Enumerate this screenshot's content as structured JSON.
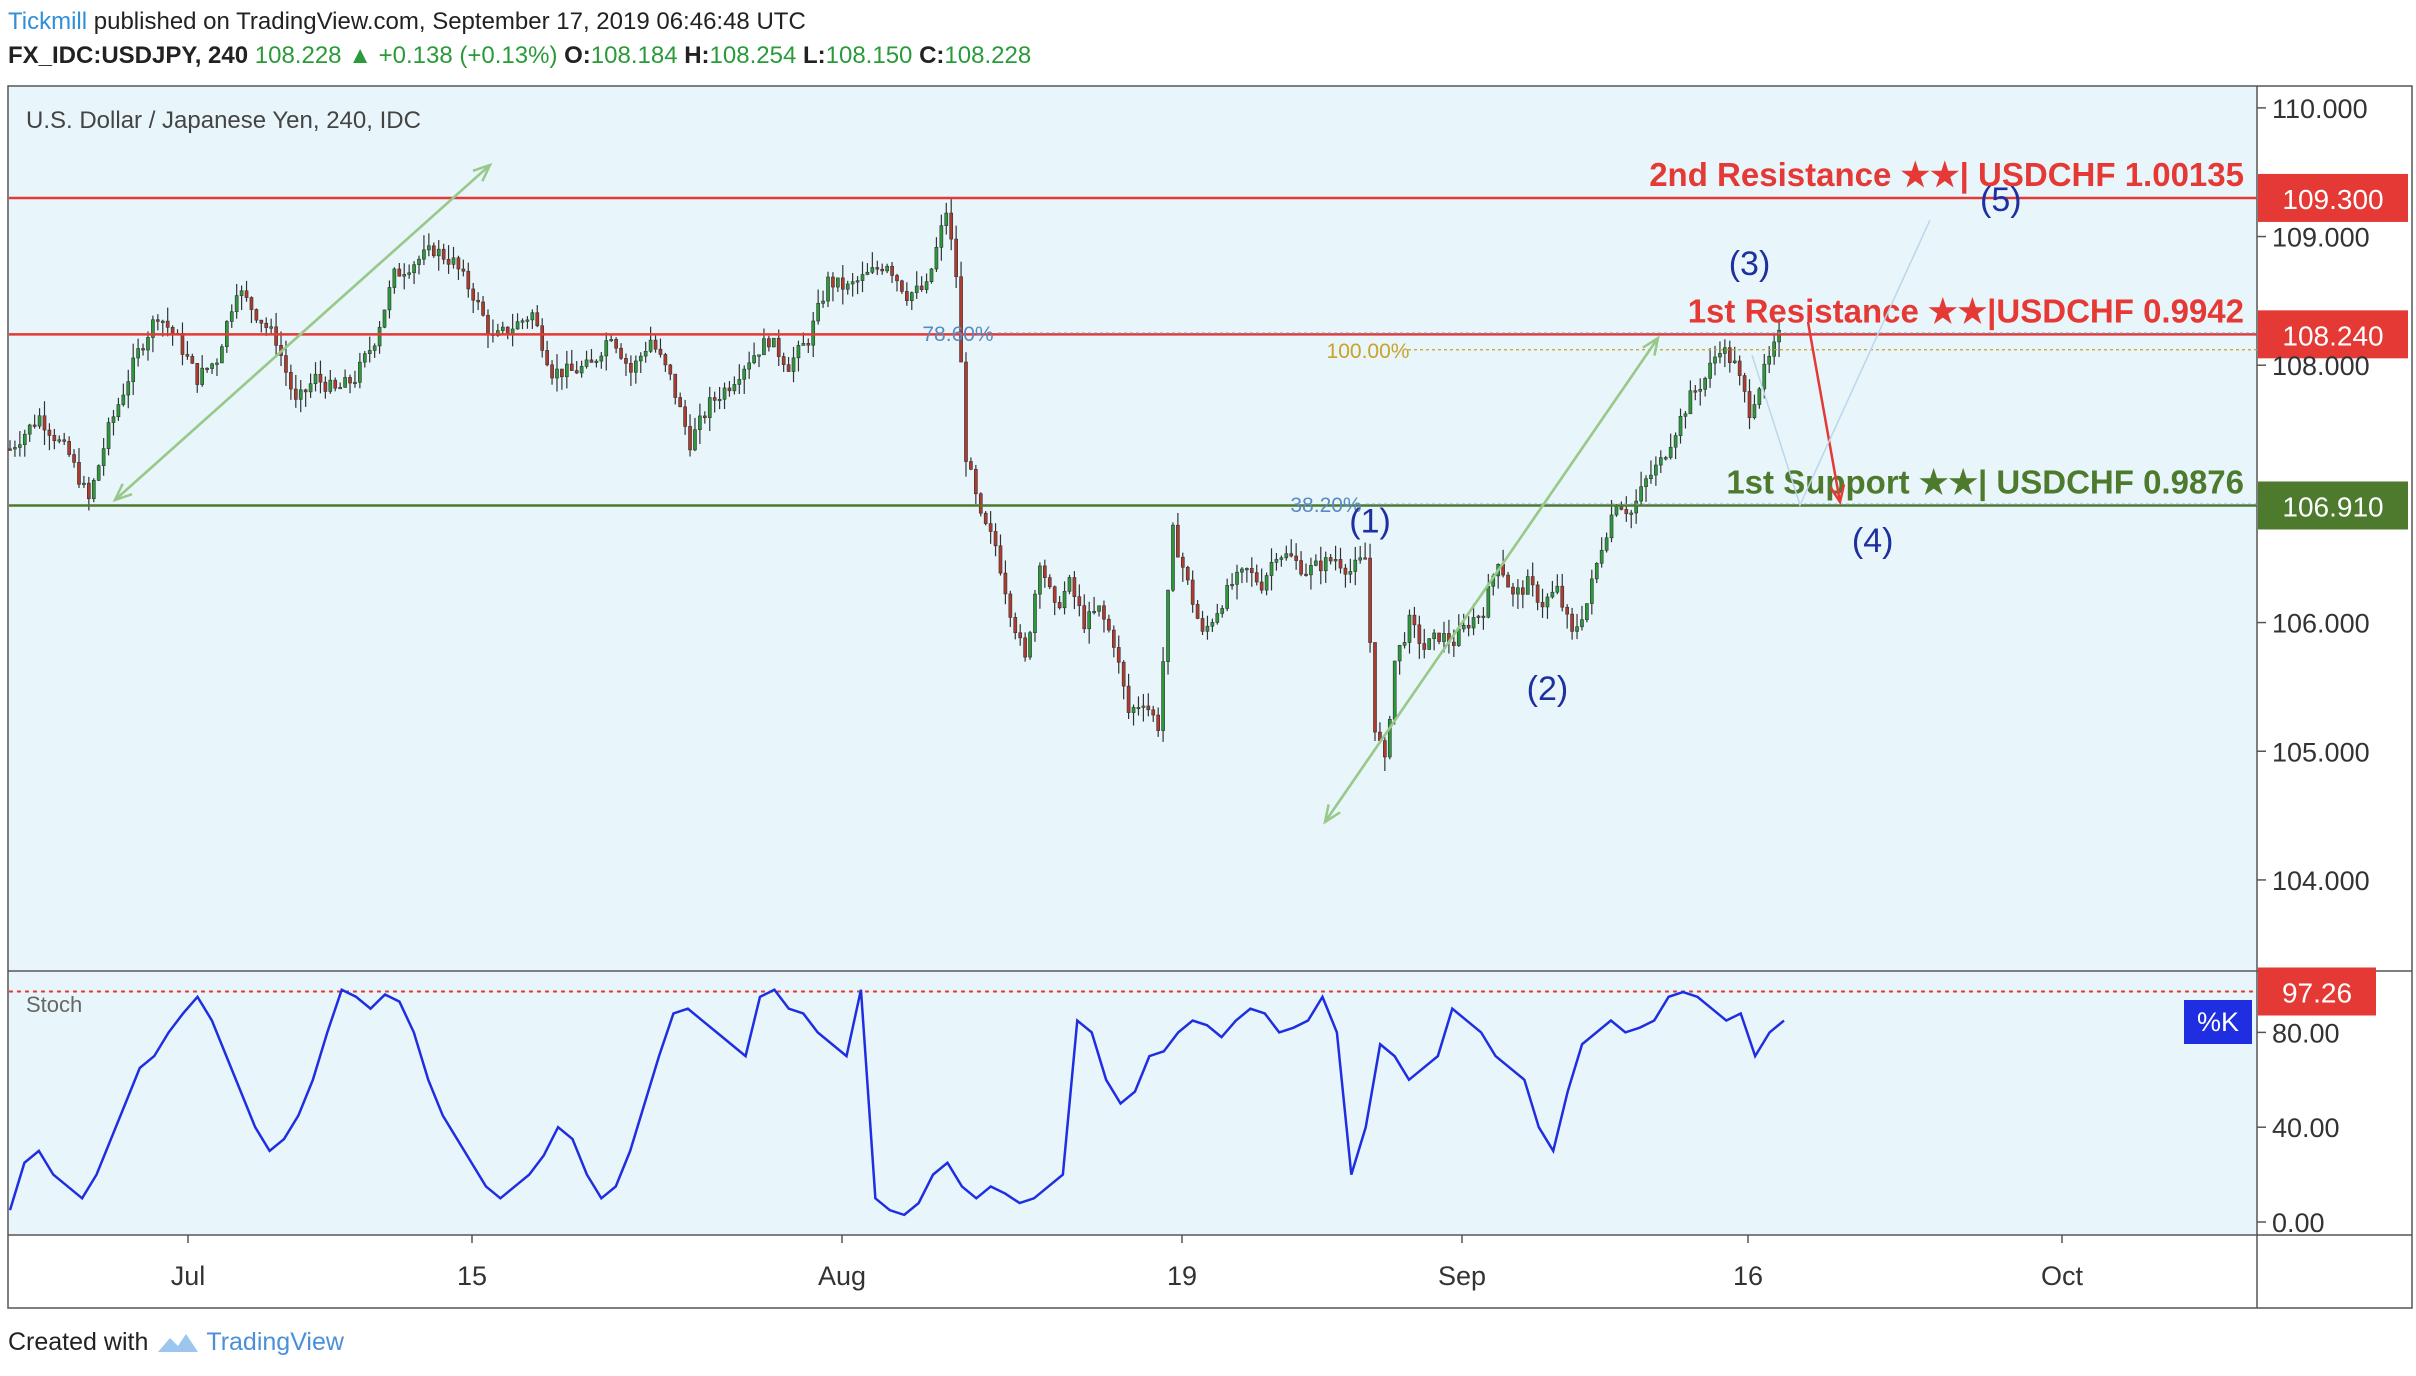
{
  "header": {
    "publisher": "Tickmill",
    "published_text": " published on TradingView.com, September 17, 2019 06:46:48 UTC",
    "symbol": "FX_IDC:USDJPY, 240",
    "last": "108.228",
    "change": "+0.138 (+0.13%)",
    "o_label": "O:",
    "o": "108.184",
    "h_label": "H:",
    "h": "108.254",
    "l_label": "L:",
    "l": "108.150",
    "c_label": "C:",
    "c": "108.228"
  },
  "footer": {
    "created_with": "Created with",
    "brand": "TradingView"
  },
  "colors": {
    "up": "#2a9a3a",
    "down": "#b03a2e",
    "resistance": "#e53935",
    "support": "#4d7a2c",
    "stoch": "#1f2ee0",
    "background": "#e8f6fb"
  },
  "chart_data": {
    "type": "candlestick",
    "title": "U.S. Dollar / Japanese Yen, 240, IDC",
    "yaxis": {
      "ticks": [
        "110.000",
        "109.000",
        "108.000",
        "106.000",
        "105.000",
        "104.000"
      ],
      "ylim": [
        103.3,
        110.1
      ],
      "tick_values": [
        110,
        109,
        108,
        106,
        105,
        104
      ]
    },
    "xaxis": {
      "ticks": [
        "Jul",
        "15",
        "Aug",
        "19",
        "Sep",
        "16",
        "Oct"
      ]
    },
    "price_path": [
      [
        0,
        107.35
      ],
      [
        6,
        107.6
      ],
      [
        12,
        107.3
      ],
      [
        16,
        106.95
      ],
      [
        20,
        107.5
      ],
      [
        26,
        108.1
      ],
      [
        30,
        108.4
      ],
      [
        34,
        108.2
      ],
      [
        38,
        107.9
      ],
      [
        42,
        108.05
      ],
      [
        46,
        108.6
      ],
      [
        50,
        108.4
      ],
      [
        54,
        108.2
      ],
      [
        58,
        107.7
      ],
      [
        62,
        107.9
      ],
      [
        66,
        107.8
      ],
      [
        70,
        107.9
      ],
      [
        74,
        108.2
      ],
      [
        78,
        108.7
      ],
      [
        82,
        108.8
      ],
      [
        86,
        108.9
      ],
      [
        90,
        108.8
      ],
      [
        94,
        108.55
      ],
      [
        98,
        108.2
      ],
      [
        102,
        108.3
      ],
      [
        106,
        108.4
      ],
      [
        110,
        107.95
      ],
      [
        114,
        107.95
      ],
      [
        118,
        108.0
      ],
      [
        122,
        108.25
      ],
      [
        126,
        107.95
      ],
      [
        130,
        108.2
      ],
      [
        134,
        107.9
      ],
      [
        138,
        107.4
      ],
      [
        142,
        107.7
      ],
      [
        146,
        107.85
      ],
      [
        150,
        108.05
      ],
      [
        154,
        108.2
      ],
      [
        158,
        108.0
      ],
      [
        162,
        108.2
      ],
      [
        166,
        108.65
      ],
      [
        170,
        108.6
      ],
      [
        174,
        108.7
      ],
      [
        178,
        108.8
      ],
      [
        182,
        108.55
      ],
      [
        186,
        108.6
      ],
      [
        190,
        109.2
      ],
      [
        192,
        108.7
      ],
      [
        194,
        107.3
      ],
      [
        197,
        106.8
      ],
      [
        200,
        106.6
      ],
      [
        203,
        106.1
      ],
      [
        206,
        105.7
      ],
      [
        209,
        106.5
      ],
      [
        212,
        106.1
      ],
      [
        215,
        106.3
      ],
      [
        218,
        106.0
      ],
      [
        221,
        106.1
      ],
      [
        224,
        105.85
      ],
      [
        227,
        105.3
      ],
      [
        230,
        105.4
      ],
      [
        233,
        105.2
      ],
      [
        236,
        106.7
      ],
      [
        239,
        106.3
      ],
      [
        242,
        105.9
      ],
      [
        245,
        106.1
      ],
      [
        248,
        106.3
      ],
      [
        251,
        106.4
      ],
      [
        254,
        106.3
      ],
      [
        257,
        106.55
      ],
      [
        260,
        106.5
      ],
      [
        263,
        106.4
      ],
      [
        266,
        106.45
      ],
      [
        269,
        106.5
      ],
      [
        272,
        106.4
      ],
      [
        275,
        106.5
      ],
      [
        277,
        105.2
      ],
      [
        279,
        104.9
      ],
      [
        281,
        105.7
      ],
      [
        284,
        106.0
      ],
      [
        287,
        105.8
      ],
      [
        290,
        105.9
      ],
      [
        293,
        105.85
      ],
      [
        296,
        106.0
      ],
      [
        299,
        106.1
      ],
      [
        302,
        106.5
      ],
      [
        305,
        106.2
      ],
      [
        308,
        106.3
      ],
      [
        311,
        106.15
      ],
      [
        314,
        106.25
      ],
      [
        317,
        105.9
      ],
      [
        320,
        106.15
      ],
      [
        323,
        106.6
      ],
      [
        326,
        106.95
      ],
      [
        329,
        106.85
      ],
      [
        332,
        107.1
      ],
      [
        335,
        107.25
      ],
      [
        338,
        107.5
      ],
      [
        341,
        107.75
      ],
      [
        344,
        107.9
      ],
      [
        347,
        108.15
      ],
      [
        350,
        108.0
      ],
      [
        353,
        107.65
      ],
      [
        356,
        107.95
      ],
      [
        359,
        108.22
      ]
    ],
    "reference_lines": [
      {
        "label": "2nd Resistance ★★| USDCHF 1.00135",
        "value": 109.3,
        "tag": "109.300",
        "color": "#e53935"
      },
      {
        "label": "1st Resistance ★★|USDCHF 0.9942",
        "value": 108.24,
        "tag": "108.240",
        "color": "#e53935"
      },
      {
        "label": "1st Support ★★| USDCHF 0.9876",
        "value": 106.91,
        "tag": "106.910",
        "color": "#4d7a2c"
      }
    ],
    "fib_labels": [
      {
        "label": "78.60%",
        "value": 108.25
      },
      {
        "label": "100.00%",
        "value": 108.12
      },
      {
        "label": "38.20%",
        "value": 106.92
      }
    ],
    "wave_labels": [
      {
        "label": "(1)",
        "x": 276,
        "value": 106.7
      },
      {
        "label": "(2)",
        "x": 312,
        "value": 105.4
      },
      {
        "label": "(3)",
        "x": 353,
        "value": 108.7
      },
      {
        "label": "(4)",
        "x": 378,
        "value": 106.55
      },
      {
        "label": "(5)",
        "x": 404,
        "value": 109.2
      }
    ],
    "stoch": {
      "label": "Stoch",
      "k_label": "%K",
      "level_tag": "97.26",
      "level": 97.26,
      "ticks": [
        "80.00",
        "40.00",
        "0.00"
      ],
      "tick_values": [
        80,
        40,
        0
      ],
      "values": [
        5,
        25,
        30,
        20,
        15,
        10,
        20,
        35,
        50,
        65,
        70,
        80,
        88,
        95,
        85,
        70,
        55,
        40,
        30,
        35,
        45,
        60,
        80,
        98,
        95,
        90,
        96,
        93,
        80,
        60,
        45,
        35,
        25,
        15,
        10,
        15,
        20,
        28,
        40,
        35,
        20,
        10,
        15,
        30,
        50,
        70,
        88,
        90,
        85,
        80,
        75,
        70,
        95,
        98,
        90,
        88,
        80,
        75,
        70,
        98,
        10,
        5,
        3,
        8,
        20,
        25,
        15,
        10,
        15,
        12,
        8,
        10,
        15,
        20,
        85,
        80,
        60,
        50,
        55,
        70,
        72,
        80,
        85,
        83,
        78,
        85,
        90,
        88,
        80,
        82,
        85,
        95,
        80,
        20,
        40,
        75,
        70,
        60,
        65,
        70,
        90,
        85,
        80,
        70,
        65,
        60,
        40,
        30,
        55,
        75,
        80,
        85,
        80,
        82,
        85,
        95,
        97,
        95,
        90,
        85,
        88,
        70,
        80,
        85
      ]
    }
  }
}
